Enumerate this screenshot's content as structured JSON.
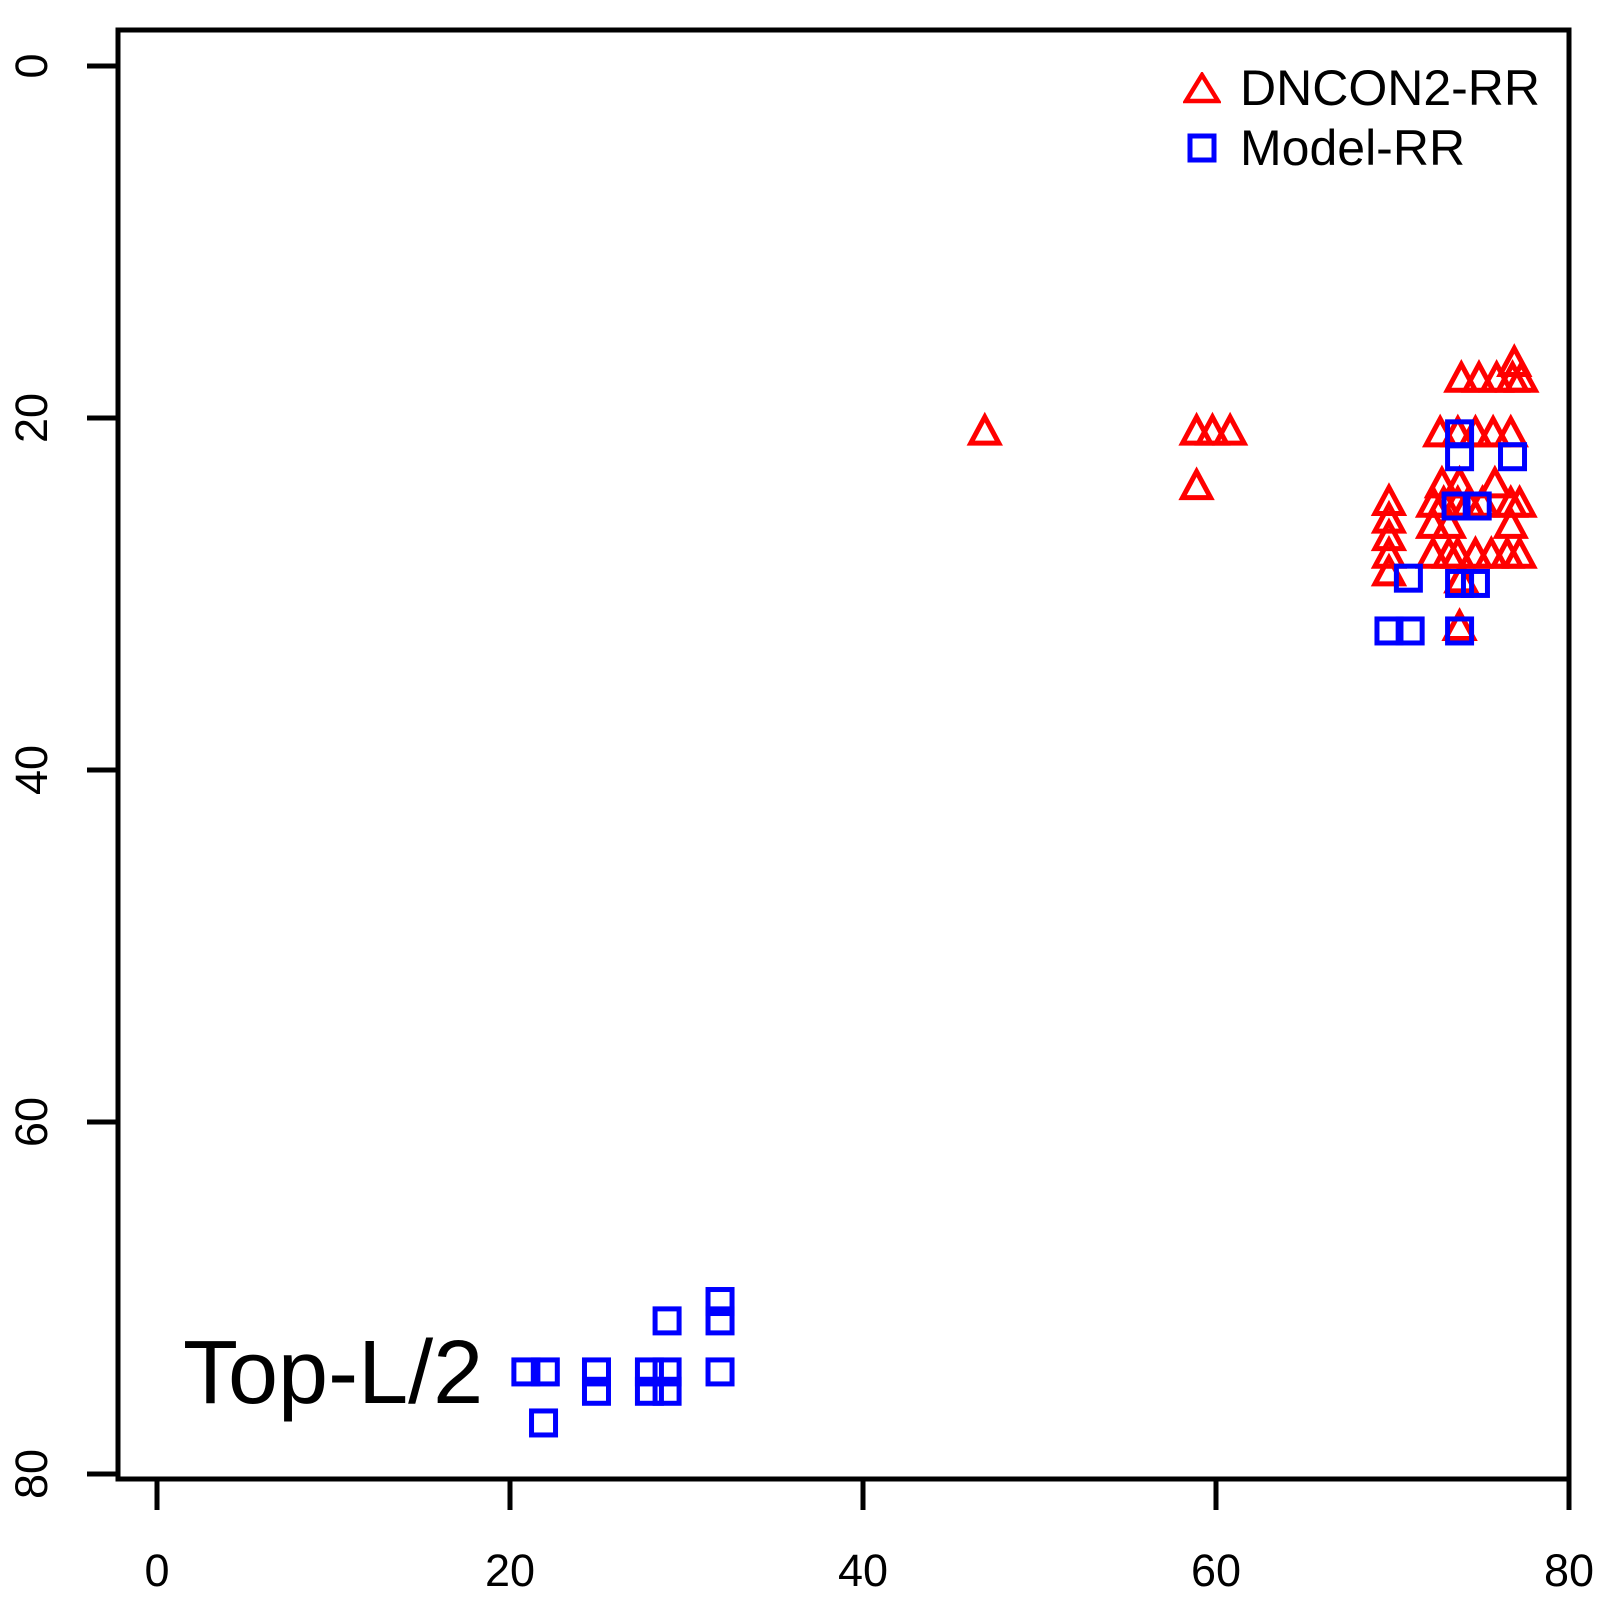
{
  "figure": {
    "background_color": "#ffffff",
    "foreground_color": "#000000"
  },
  "legend": {
    "position": "top-right",
    "items": [
      {
        "label": "DNCON2-RR",
        "symbol": "triangle-up-icon",
        "color": "#ff0000"
      },
      {
        "label": "Model-RR",
        "symbol": "square-icon",
        "color": "#0000ff"
      }
    ]
  },
  "annotation": {
    "text": "Top-L/2"
  },
  "axes": {
    "x": {
      "min": 0,
      "max": 80,
      "ticks": [
        "0",
        "20",
        "40",
        "60",
        "80"
      ],
      "tick_values": [
        0,
        20,
        40,
        60,
        80
      ],
      "label": ""
    },
    "y": {
      "min": 0,
      "max": 80,
      "ticks": [
        "0",
        "20",
        "40",
        "60",
        "80"
      ],
      "tick_values": [
        0,
        20,
        40,
        60,
        80
      ],
      "label": "",
      "direction": "increasing-downward"
    }
  },
  "chart_data": {
    "type": "scatter",
    "title": "",
    "xlabel": "",
    "ylabel": "",
    "xlim": [
      0,
      80
    ],
    "ylim_top_to_bottom": [
      0,
      80
    ],
    "grid": false,
    "legend_position": "top-right",
    "annotation": "Top-L/2",
    "series": [
      {
        "name": "DNCON2-RR",
        "marker": "triangle-up",
        "color": "#ff0000",
        "points": [
          [
            46.9,
            20.8
          ],
          [
            58.9,
            20.8
          ],
          [
            59.8,
            20.8
          ],
          [
            60.8,
            20.8
          ],
          [
            58.9,
            23.9
          ],
          [
            73.9,
            17.8
          ],
          [
            74.9,
            17.8
          ],
          [
            75.9,
            17.8
          ],
          [
            76.8,
            17.8
          ],
          [
            77.3,
            17.8
          ],
          [
            76.9,
            16.9
          ],
          [
            72.7,
            20.9
          ],
          [
            73.7,
            20.9
          ],
          [
            74.7,
            20.9
          ],
          [
            75.7,
            20.9
          ],
          [
            76.7,
            20.9
          ],
          [
            72.8,
            23.8
          ],
          [
            73.8,
            23.8
          ],
          [
            75.8,
            23.8
          ],
          [
            72.3,
            24.9
          ],
          [
            72.9,
            24.9
          ],
          [
            73.7,
            24.9
          ],
          [
            74.3,
            24.9
          ],
          [
            75.1,
            24.9
          ],
          [
            76.7,
            24.9
          ],
          [
            77.2,
            24.9
          ],
          [
            69.8,
            24.8
          ],
          [
            69.8,
            25.8
          ],
          [
            69.8,
            26.8
          ],
          [
            69.8,
            27.8
          ],
          [
            69.8,
            28.8
          ],
          [
            72.3,
            26.1
          ],
          [
            73.2,
            26.1
          ],
          [
            76.7,
            26.1
          ],
          [
            72.3,
            27.8
          ],
          [
            73.2,
            27.8
          ],
          [
            73.7,
            27.8
          ],
          [
            74.7,
            27.8
          ],
          [
            75.6,
            27.8
          ],
          [
            76.5,
            27.8
          ],
          [
            77.2,
            27.8
          ],
          [
            73.9,
            29.2
          ],
          [
            73.8,
            31.9
          ]
        ]
      },
      {
        "name": "Model-RR",
        "marker": "square",
        "color": "#0000ff",
        "points": [
          [
            73.8,
            20.9
          ],
          [
            73.8,
            22.2
          ],
          [
            76.8,
            22.2
          ],
          [
            73.6,
            25.0
          ],
          [
            74.8,
            25.0
          ],
          [
            70.9,
            29.1
          ],
          [
            73.8,
            29.4
          ],
          [
            74.7,
            29.4
          ],
          [
            69.8,
            32.1
          ],
          [
            71.0,
            32.1
          ],
          [
            73.8,
            32.1
          ],
          [
            28.9,
            71.3
          ],
          [
            31.9,
            70.2
          ],
          [
            31.9,
            71.3
          ],
          [
            20.9,
            74.2
          ],
          [
            22.0,
            74.2
          ],
          [
            24.9,
            74.2
          ],
          [
            24.9,
            75.3
          ],
          [
            27.9,
            74.2
          ],
          [
            28.9,
            74.2
          ],
          [
            27.9,
            75.3
          ],
          [
            28.9,
            75.3
          ],
          [
            31.9,
            74.2
          ],
          [
            21.9,
            77.1
          ]
        ]
      }
    ]
  }
}
